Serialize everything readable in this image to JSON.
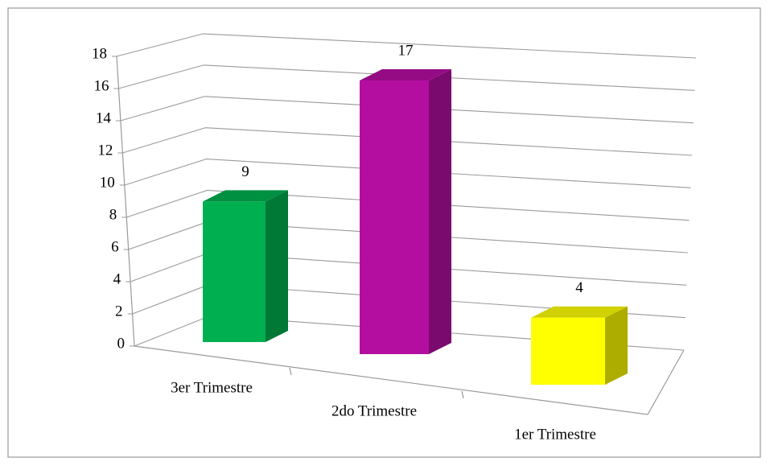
{
  "chart_data": {
    "type": "bar3d",
    "categories": [
      "3er Trimestre",
      "2do Trimestre",
      "1er Trimestre"
    ],
    "values": [
      9,
      17,
      4
    ],
    "colors": [
      "#00b050",
      "#b40ea0",
      "#ffff00"
    ],
    "ylim": [
      0,
      18
    ],
    "yticks": [
      0,
      2,
      4,
      6,
      8,
      10,
      12,
      14,
      16,
      18
    ],
    "grid": true
  }
}
